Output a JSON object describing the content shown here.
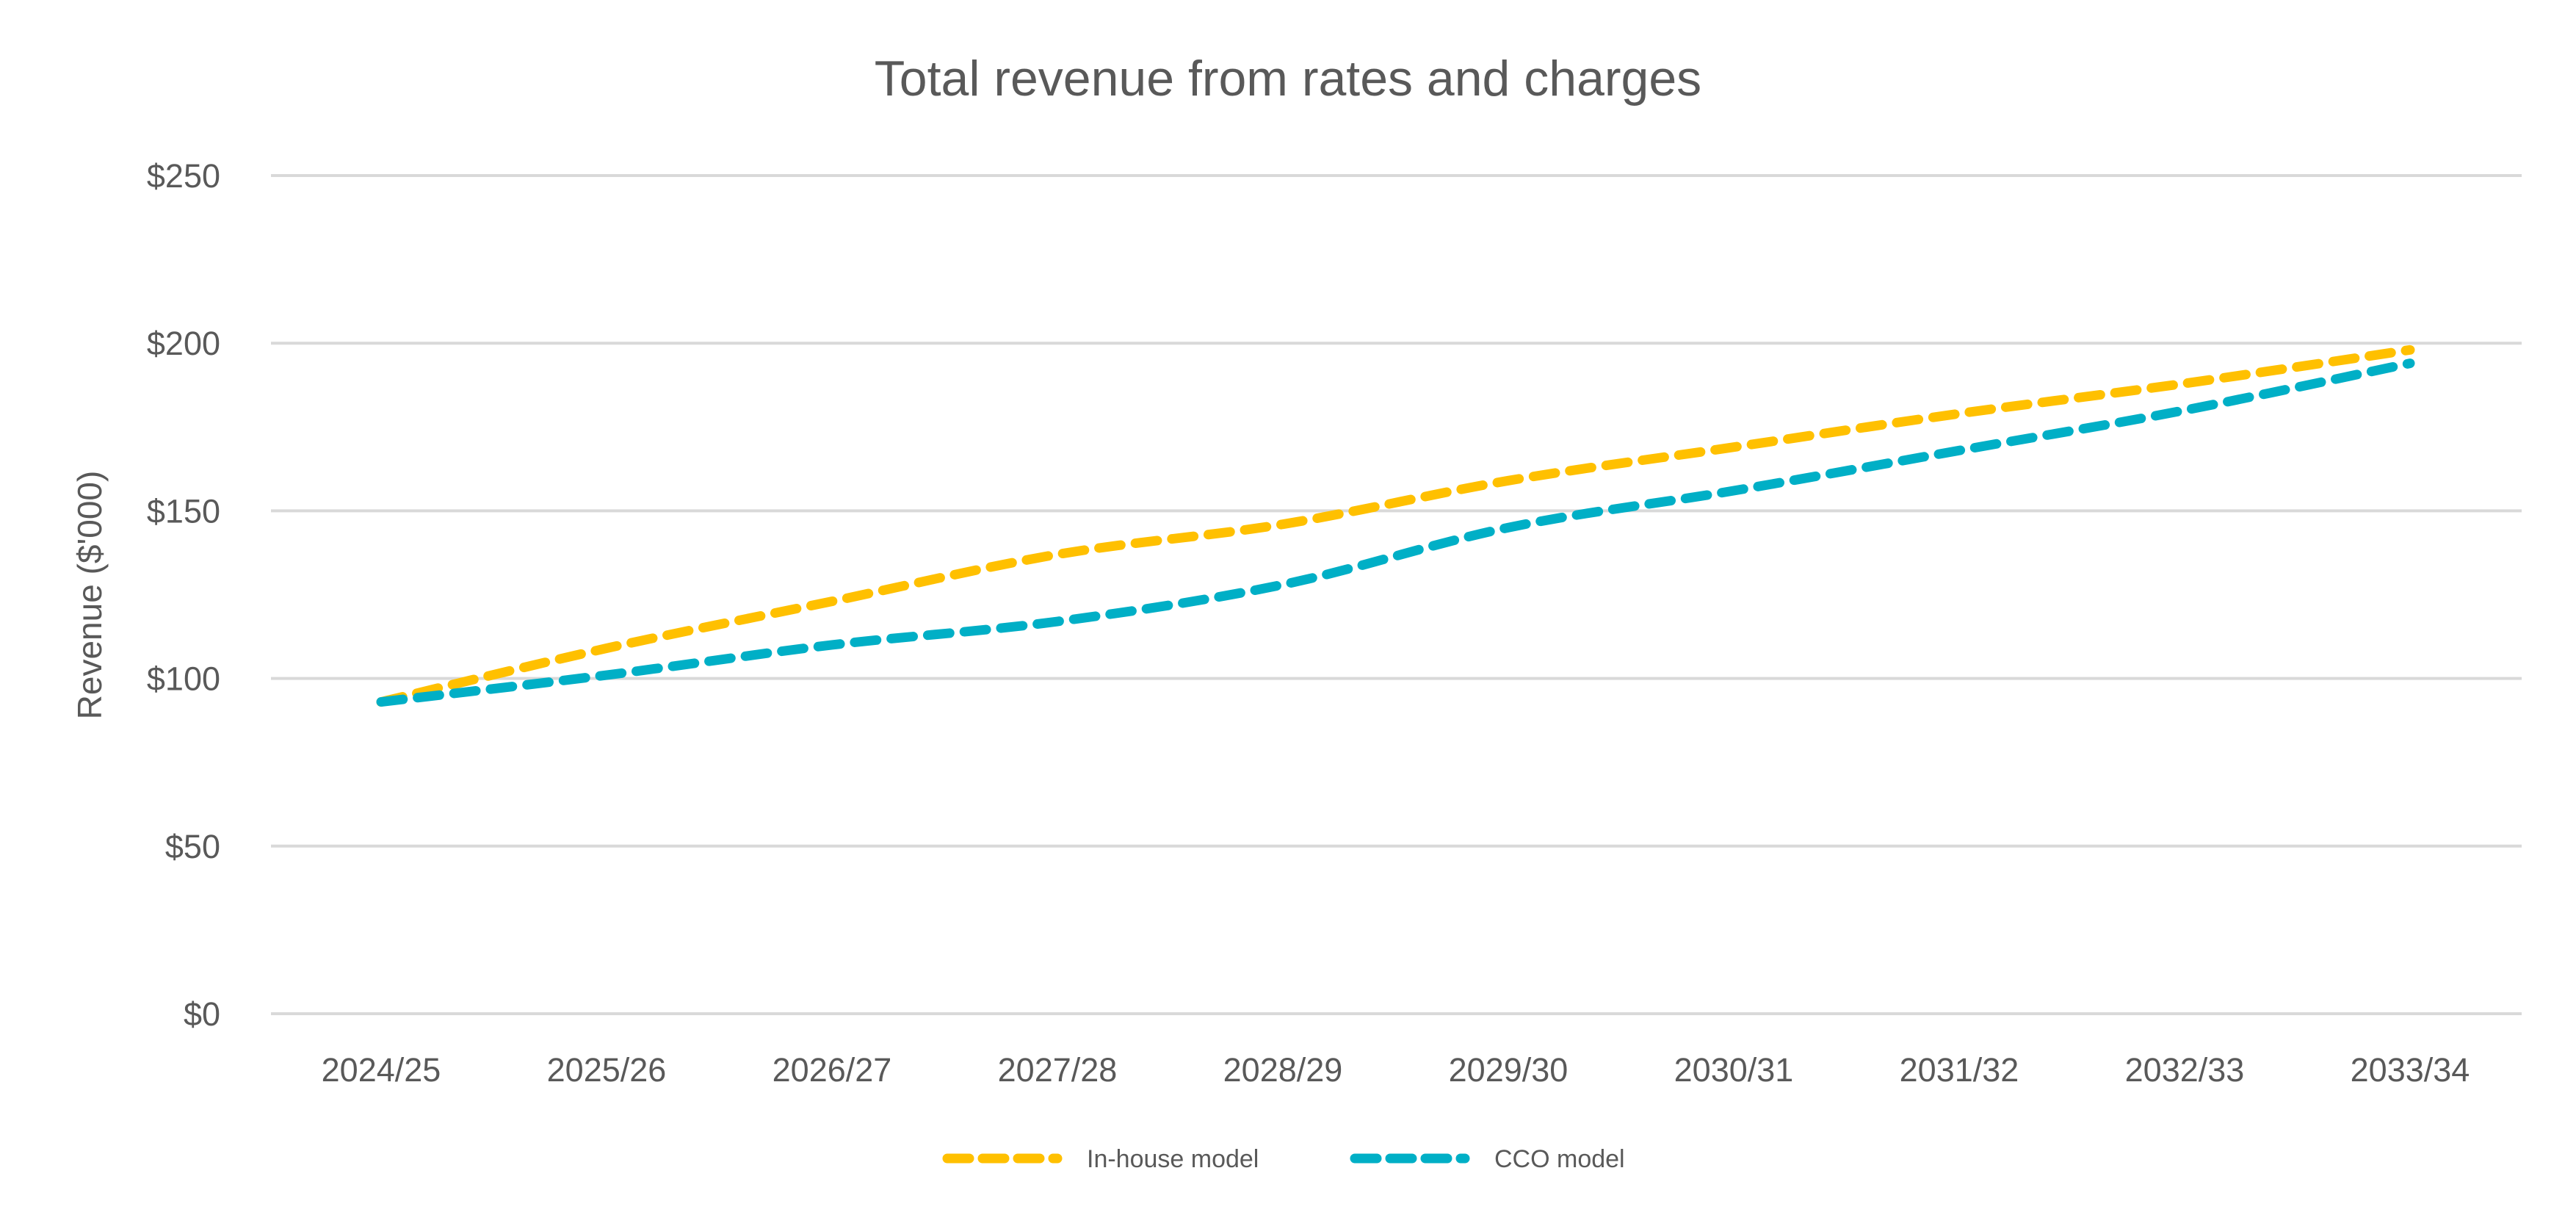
{
  "chart_data": {
    "type": "line",
    "title": "Total revenue from rates and charges",
    "xlabel": "",
    "ylabel": "Revenue ($'000)",
    "categories": [
      "2024/25",
      "2025/26",
      "2026/27",
      "2027/28",
      "2028/29",
      "2029/30",
      "2030/31",
      "2031/32",
      "2032/33",
      "2033/34"
    ],
    "ylim": [
      0,
      250
    ],
    "yticks": [
      0,
      50,
      100,
      150,
      200,
      250
    ],
    "ytick_labels": [
      "$0",
      "$50",
      "$100",
      "$150",
      "$200",
      "$250"
    ],
    "grid": true,
    "legend_position": "bottom",
    "series": [
      {
        "name": "In-house model",
        "color": "#FFC000",
        "style": "dashed",
        "values": [
          93,
          109,
          123,
          137,
          146,
          159,
          169,
          179,
          188,
          198
        ]
      },
      {
        "name": "CCO model",
        "color": "#00AFC6",
        "style": "dashed",
        "values": [
          93,
          101,
          110,
          117,
          128,
          145,
          156,
          168,
          180,
          194
        ]
      }
    ]
  }
}
